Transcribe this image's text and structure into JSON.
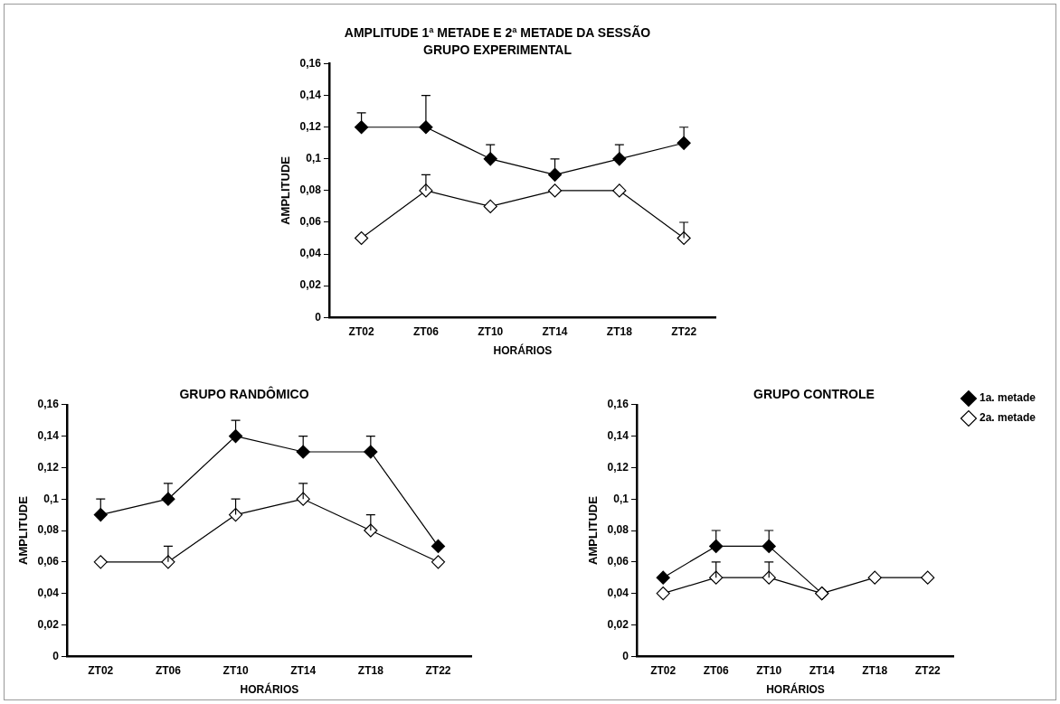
{
  "chart_data": [
    {
      "type": "line",
      "title": "AMPLITUDE 1ª METADE E 2ª METADE DA SESSÃO",
      "subtitle": "GRUPO EXPERIMENTAL",
      "xlabel": "HORÁRIOS",
      "ylabel": "AMPLITUDE",
      "categories": [
        "ZT02",
        "ZT06",
        "ZT10",
        "ZT14",
        "ZT18",
        "ZT22"
      ],
      "series": [
        {
          "color": "#000000",
          "values": [
            0.12,
            0.12,
            0.1,
            0.09,
            0.1,
            0.11
          ],
          "errors": [
            [
              0.12,
              0.129
            ],
            [
              0.12,
              0.14
            ],
            [
              0.1,
              0.109
            ],
            [
              0.09,
              0.1
            ],
            [
              0.1,
              0.109
            ],
            [
              0.11,
              0.12
            ]
          ]
        },
        {
          "color": "#ffffff",
          "values": [
            0.05,
            0.08,
            0.07,
            0.08,
            0.08,
            0.05
          ],
          "errors": [
            null,
            [
              0.08,
              0.09
            ],
            null,
            null,
            null,
            [
              0.05,
              0.06
            ]
          ]
        }
      ],
      "ylim": [
        0,
        0.16
      ],
      "yticks": [
        {
          "value": 0,
          "label": "0"
        },
        {
          "value": 0.02,
          "label": "0,02"
        },
        {
          "value": 0.04,
          "label": "0,04"
        },
        {
          "value": 0.06,
          "label": "0,06"
        },
        {
          "value": 0.08,
          "label": "0,08"
        },
        {
          "value": 0.1,
          "label": "0,1"
        },
        {
          "value": 0.12,
          "label": "0,12"
        },
        {
          "value": 0.14,
          "label": "0,14"
        },
        {
          "value": 0.16,
          "label": "0,16"
        }
      ],
      "grid": false,
      "legend": false,
      "marker": "diamond",
      "line_style": "solid"
    },
    {
      "type": "line",
      "title": "GRUPO RANDÔMICO",
      "xlabel": "HORÁRIOS",
      "ylabel": "AMPLITUDE",
      "categories": [
        "ZT02",
        "ZT06",
        "ZT10",
        "ZT14",
        "ZT18",
        "ZT22"
      ],
      "series": [
        {
          "color": "#000000",
          "values": [
            0.09,
            0.1,
            0.14,
            0.13,
            0.13,
            0.07
          ],
          "errors": [
            [
              0.09,
              0.1
            ],
            [
              0.1,
              0.11
            ],
            [
              0.14,
              0.15
            ],
            [
              0.13,
              0.14
            ],
            [
              0.13,
              0.14
            ],
            null
          ]
        },
        {
          "color": "#ffffff",
          "values": [
            0.06,
            0.06,
            0.09,
            0.1,
            0.08,
            0.06
          ],
          "errors": [
            null,
            [
              0.06,
              0.07
            ],
            [
              0.09,
              0.1
            ],
            [
              0.1,
              0.11
            ],
            [
              0.08,
              0.09
            ],
            null
          ]
        }
      ],
      "ylim": [
        0,
        0.16
      ],
      "yticks": [
        {
          "value": 0,
          "label": "0"
        },
        {
          "value": 0.02,
          "label": "0,02"
        },
        {
          "value": 0.04,
          "label": "0,04"
        },
        {
          "value": 0.06,
          "label": "0,06"
        },
        {
          "value": 0.08,
          "label": "0,08"
        },
        {
          "value": 0.1,
          "label": "0,1"
        },
        {
          "value": 0.12,
          "label": "0,12"
        },
        {
          "value": 0.14,
          "label": "0,14"
        },
        {
          "value": 0.16,
          "label": "0,16"
        }
      ],
      "grid": false,
      "legend": false,
      "marker": "diamond",
      "line_style": "solid"
    },
    {
      "type": "line",
      "title": "GRUPO CONTROLE",
      "xlabel": "HORÁRIOS",
      "ylabel": "AMPLITUDE",
      "categories": [
        "ZT02",
        "ZT06",
        "ZT10",
        "ZT14",
        "ZT18",
        "ZT22"
      ],
      "series": [
        {
          "name": "1a. metade",
          "color": "#000000",
          "values": [
            0.05,
            0.07,
            0.07,
            0.04,
            null,
            null
          ],
          "errors": [
            null,
            [
              0.07,
              0.08
            ],
            [
              0.07,
              0.08
            ],
            null,
            null,
            null
          ]
        },
        {
          "name": "2a. metade",
          "color": "#ffffff",
          "values": [
            0.04,
            0.05,
            0.05,
            0.04,
            0.05,
            0.05
          ],
          "errors": [
            null,
            [
              0.05,
              0.06
            ],
            [
              0.05,
              0.06
            ],
            null,
            null,
            null
          ]
        }
      ],
      "ylim": [
        0,
        0.16
      ],
      "yticks": [
        {
          "value": 0,
          "label": "0"
        },
        {
          "value": 0.02,
          "label": "0,02"
        },
        {
          "value": 0.04,
          "label": "0,04"
        },
        {
          "value": 0.06,
          "label": "0,06"
        },
        {
          "value": 0.08,
          "label": "0,08"
        },
        {
          "value": 0.1,
          "label": "0,1"
        },
        {
          "value": 0.12,
          "label": "0,12"
        },
        {
          "value": 0.14,
          "label": "0,14"
        },
        {
          "value": 0.16,
          "label": "0,16"
        }
      ],
      "grid": false,
      "legend": "top right",
      "marker": "diamond",
      "line_style": "solid"
    }
  ]
}
